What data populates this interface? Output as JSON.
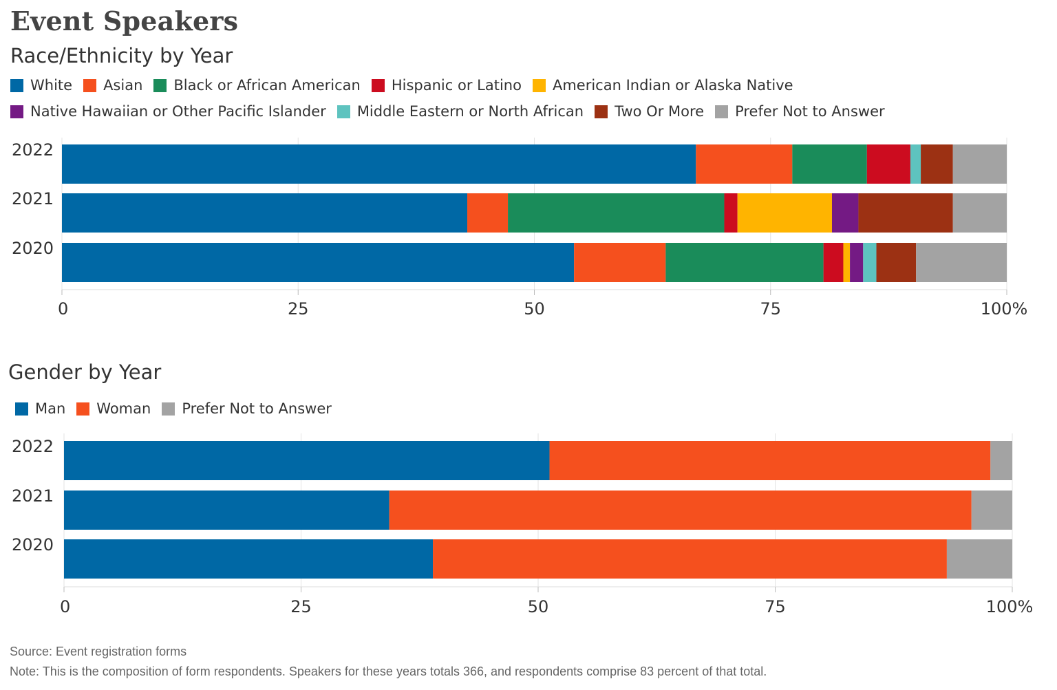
{
  "page": {
    "title": "Event Speakers",
    "source": "Source: Event registration forms",
    "note": "Note: This is the composition of form respondents. Speakers for these years totals 366, and respondents comprise 83 percent of that total."
  },
  "chart_data": [
    {
      "type": "bar",
      "orientation": "horizontal",
      "stacked": true,
      "title": "Race/Ethnicity by Year",
      "categories": [
        "2022",
        "2021",
        "2020"
      ],
      "xlim": [
        0,
        100
      ],
      "ticks": [
        "0",
        "25",
        "50",
        "75",
        "100%"
      ],
      "grid": true,
      "legend_position": "top",
      "series": [
        {
          "name": "White",
          "color": "#0068a5",
          "values": [
            67.1,
            42.9,
            54.2
          ]
        },
        {
          "name": "Asian",
          "color": "#f5501e",
          "values": [
            10.2,
            4.3,
            9.7
          ]
        },
        {
          "name": "Black or African American",
          "color": "#1a8c5a",
          "values": [
            7.9,
            22.9,
            16.7
          ]
        },
        {
          "name": "Hispanic or Latino",
          "color": "#cc0c1f",
          "values": [
            4.6,
            1.4,
            2.1
          ]
        },
        {
          "name": "American Indian or Alaska Native",
          "color": "#ffb400",
          "values": [
            0,
            10.0,
            0.7
          ]
        },
        {
          "name": "Native Hawaiian or Other Pacific Islander",
          "color": "#741a84",
          "values": [
            0,
            2.8,
            1.4
          ]
        },
        {
          "name": "Middle Eastern or North African",
          "color": "#5ec3bf",
          "values": [
            1.1,
            0,
            1.4
          ]
        },
        {
          "name": "Two Or More",
          "color": "#9c3113",
          "values": [
            3.4,
            10.0,
            4.2
          ]
        },
        {
          "name": "Prefer Not to Answer",
          "color": "#a3a3a3",
          "values": [
            5.7,
            5.7,
            9.6
          ]
        }
      ]
    },
    {
      "type": "bar",
      "orientation": "horizontal",
      "stacked": true,
      "title": "Gender by Year",
      "categories": [
        "2022",
        "2021",
        "2020"
      ],
      "xlim": [
        0,
        100
      ],
      "ticks": [
        "0",
        "25",
        "50",
        "75",
        "100%"
      ],
      "grid": true,
      "legend_position": "top",
      "series": [
        {
          "name": "Man",
          "color": "#0068a5",
          "values": [
            51.2,
            34.3,
            38.9
          ]
        },
        {
          "name": "Woman",
          "color": "#f5501e",
          "values": [
            46.5,
            61.4,
            54.2
          ]
        },
        {
          "name": "Prefer Not to Answer",
          "color": "#a3a3a3",
          "values": [
            2.3,
            4.3,
            6.9
          ]
        }
      ]
    }
  ]
}
